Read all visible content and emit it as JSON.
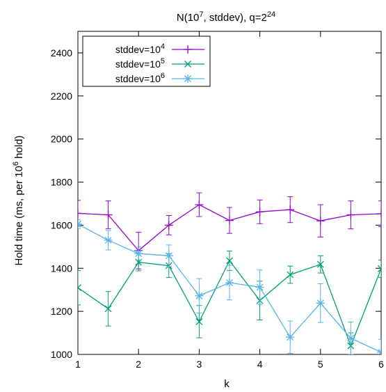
{
  "chart_data": {
    "type": "line",
    "title": {
      "base": "N(10",
      "exp": "7",
      "mid": ", stddev), q=2",
      "exp2": "24"
    },
    "xlabel": "k",
    "ylabel": {
      "pre": "Hold time (ms, per 10",
      "exp": "6",
      "post": " hold)"
    },
    "xlim": [
      1,
      6
    ],
    "ylim": [
      1000,
      2500
    ],
    "xticks": [
      1,
      2,
      3,
      4,
      5,
      6
    ],
    "yticks": [
      1000,
      1200,
      1400,
      1600,
      1800,
      2000,
      2200,
      2400
    ],
    "grid": false,
    "legend_position": "top-left",
    "x": [
      1,
      1.5,
      2,
      2.5,
      3,
      3.5,
      4,
      4.5,
      5,
      5.5,
      6
    ],
    "series": [
      {
        "name": "stddev=10^4",
        "label_base": "stddev=10",
        "label_exp": "4",
        "color": "#9400d3",
        "marker": "plus",
        "values": [
          1655,
          1648,
          1482,
          1600,
          1695,
          1622,
          1662,
          1672,
          1620,
          1648,
          1653
        ],
        "err": [
          60,
          65,
          85,
          45,
          55,
          60,
          55,
          60,
          75,
          65,
          60
        ]
      },
      {
        "name": "stddev=10^5",
        "label_base": "stddev=10",
        "label_exp": "5",
        "color": "#009e73",
        "marker": "x",
        "values": [
          1310,
          1212,
          1428,
          1412,
          1152,
          1435,
          1250,
          1370,
          1418,
          1040,
          1398
        ],
        "err": [
          80,
          80,
          40,
          55,
          75,
          45,
          90,
          40,
          40,
          60,
          40
        ]
      },
      {
        "name": "stddev=10^6",
        "label_base": "stddev=10",
        "label_exp": "6",
        "color": "#56b4e9",
        "marker": "star",
        "values": [
          1605,
          1530,
          1468,
          1458,
          1272,
          1333,
          1312,
          1080,
          1238,
          1075,
          1010
        ],
        "err": [
          20,
          45,
          30,
          50,
          80,
          80,
          80,
          75,
          90,
          75,
          60
        ]
      }
    ]
  }
}
